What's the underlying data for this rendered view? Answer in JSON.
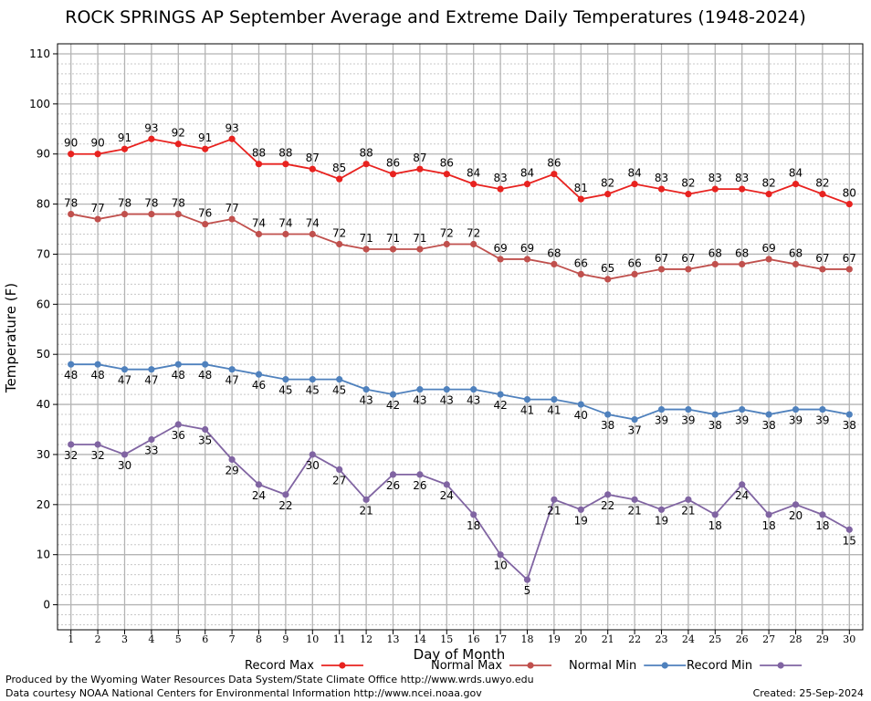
{
  "chart_data": {
    "type": "line",
    "title": "ROCK SPRINGS AP September Average and Extreme Daily Temperatures (1948-2024)",
    "xlabel": "Day of Month",
    "ylabel": "Temperature (F)",
    "x": [
      1,
      2,
      3,
      4,
      5,
      6,
      7,
      8,
      9,
      10,
      11,
      12,
      13,
      14,
      15,
      16,
      17,
      18,
      19,
      20,
      21,
      22,
      23,
      24,
      25,
      26,
      27,
      28,
      29,
      30
    ],
    "xlim": [
      0.5,
      30.5
    ],
    "ylim": [
      -5,
      112
    ],
    "yticks": [
      0,
      10,
      20,
      30,
      40,
      50,
      60,
      70,
      80,
      90,
      100,
      110
    ],
    "grid": true,
    "legend_position": "bottom",
    "series": [
      {
        "name": "Record Max",
        "color": "#e8221f",
        "label_position": "above",
        "values": [
          90,
          90,
          91,
          93,
          92,
          91,
          93,
          88,
          88,
          87,
          85,
          88,
          86,
          87,
          86,
          84,
          83,
          84,
          86,
          81,
          82,
          84,
          83,
          82,
          83,
          83,
          82,
          84,
          82,
          80
        ]
      },
      {
        "name": "Normal Max",
        "color": "#c0504d",
        "label_position": "above",
        "values": [
          78,
          77,
          78,
          78,
          78,
          76,
          77,
          74,
          74,
          74,
          72,
          71,
          71,
          71,
          72,
          72,
          69,
          69,
          68,
          66,
          65,
          66,
          67,
          67,
          68,
          68,
          69,
          68,
          67,
          67
        ]
      },
      {
        "name": "Normal Min",
        "color": "#4f81bd",
        "label_position": "below",
        "values": [
          48,
          48,
          47,
          47,
          48,
          48,
          47,
          46,
          45,
          45,
          45,
          43,
          42,
          43,
          43,
          43,
          42,
          41,
          41,
          40,
          38,
          37,
          39,
          39,
          38,
          39,
          38,
          39,
          39,
          38
        ]
      },
      {
        "name": "Record Min",
        "color": "#8064a2",
        "label_position": "below",
        "values": [
          32,
          32,
          30,
          33,
          36,
          35,
          29,
          24,
          22,
          30,
          27,
          21,
          26,
          26,
          24,
          18,
          10,
          5,
          21,
          19,
          22,
          21,
          19,
          21,
          18,
          24,
          18,
          20,
          18,
          15
        ]
      }
    ]
  },
  "footer": {
    "produced_by": "Produced by the Wyoming Water Resources Data System/State Climate Office http://www.wrds.uwyo.edu",
    "data_courtesy": "Data courtesy NOAA National Centers for Environmental Information http://www.ncei.noaa.gov",
    "created": "Created:  25-Sep-2024"
  }
}
